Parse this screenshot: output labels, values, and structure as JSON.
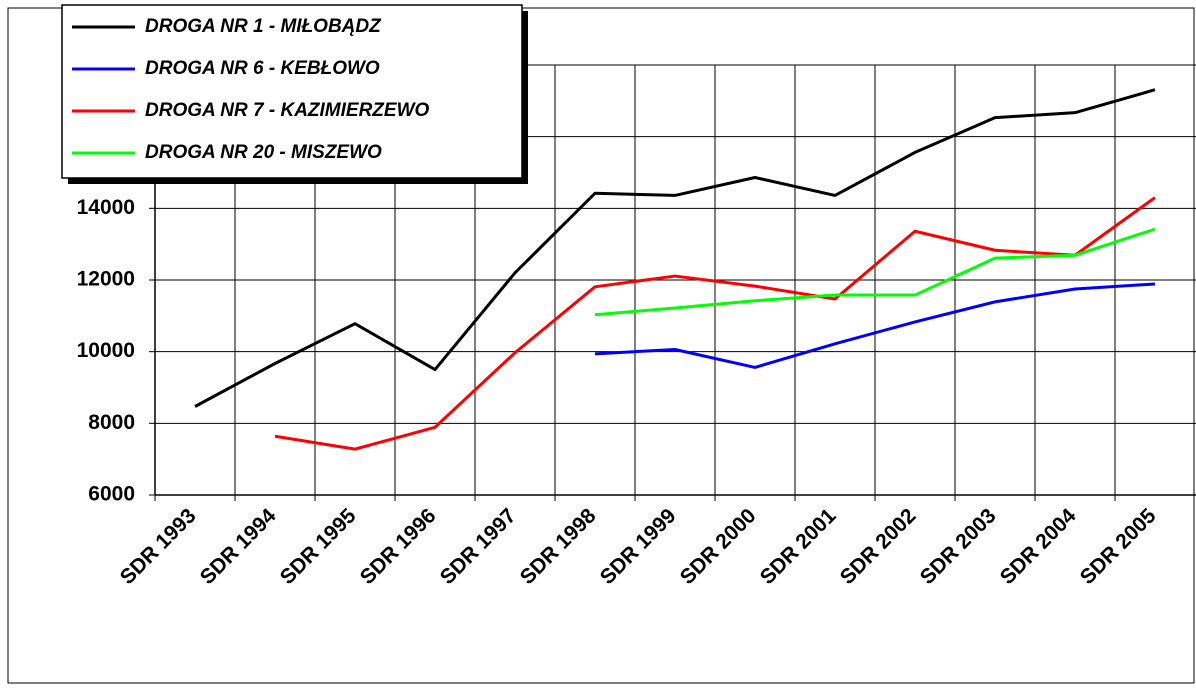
{
  "chart_data": {
    "type": "line",
    "categories": [
      "SDR 1993",
      "SDR 1994",
      "SDR 1995",
      "SDR 1996",
      "SDR 1997",
      "SDR 1998",
      "SDR 1999",
      "SDR 2000",
      "SDR 2001",
      "SDR 2002",
      "SDR 2003",
      "SDR 2004",
      "SDR 2005"
    ],
    "series": [
      {
        "name": "DROGA NR 1 - MIŁOBĄDZ",
        "color": "#000000",
        "values": [
          8470,
          9670,
          10780,
          9500,
          12200,
          14420,
          14360,
          14860,
          14360,
          15560,
          16530,
          16670,
          17310
        ]
      },
      {
        "name": "DROGA NR 6 - KEBŁOWO",
        "color": "#0000ff",
        "values": [
          null,
          null,
          null,
          null,
          null,
          9940,
          10060,
          9560,
          10220,
          10830,
          11390,
          11750,
          11890
        ]
      },
      {
        "name": "DROGA NR 7 - KAZIMIERZEWO",
        "color": "#ff0000",
        "values": [
          null,
          7640,
          7280,
          7890,
          9970,
          11810,
          12110,
          11830,
          11470,
          13360,
          12830,
          12690,
          14300
        ]
      },
      {
        "name": "DROGA NR 20 - MISZEWO",
        "color": "#00ff00",
        "values": [
          null,
          null,
          null,
          null,
          null,
          11030,
          11220,
          11420,
          11580,
          11580,
          12610,
          12690,
          13420
        ]
      }
    ],
    "ylim": [
      6000,
      18000
    ],
    "yticks": [
      6000,
      8000,
      10000,
      12000,
      14000,
      16000,
      18000
    ],
    "grid": true
  }
}
